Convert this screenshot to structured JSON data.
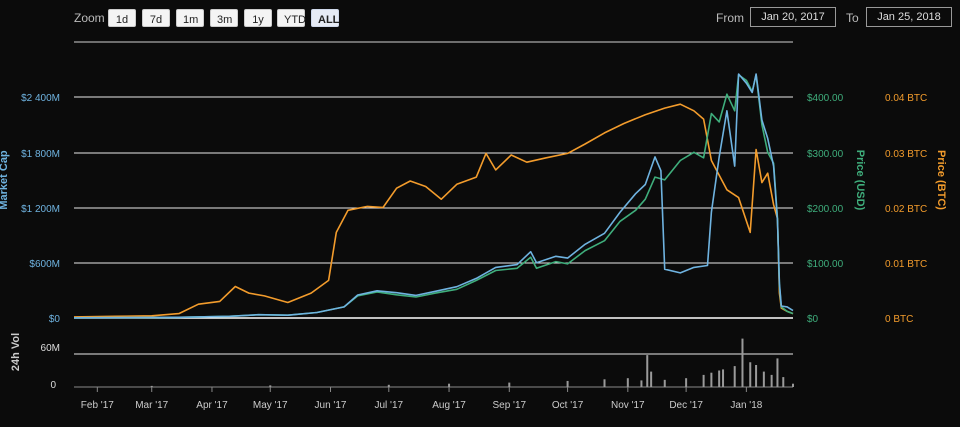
{
  "toolbar": {
    "zoom_label": "Zoom",
    "buttons": [
      "1d",
      "7d",
      "1m",
      "3m",
      "1y",
      "YTD",
      "ALL"
    ],
    "active": "ALL",
    "from_label": "From",
    "from_value": "Jan 20, 2017",
    "to_label": "To",
    "to_value": "Jan 25, 2018"
  },
  "chart_data": {
    "type": "line",
    "x_start": "2017-01-20",
    "x_end": "2018-01-25",
    "x_ticks": [
      "Feb '17",
      "Mar '17",
      "Apr '17",
      "May '17",
      "Jun '17",
      "Jul '17",
      "Aug '17",
      "Sep '17",
      "Oct '17",
      "Nov '17",
      "Dec '17",
      "Jan '18"
    ],
    "axes": {
      "market_cap": {
        "label": "Market Cap",
        "ticks": [
          "$0",
          "$600M",
          "$1 200M",
          "$1 800M",
          "$2 400M"
        ],
        "range": [
          0,
          2400
        ],
        "unit": "M USD",
        "color": "#6fb3e0"
      },
      "price_usd": {
        "label": "Price (USD)",
        "ticks": [
          "$0",
          "$100.00",
          "$200.00",
          "$300.00",
          "$400.00"
        ],
        "range": [
          0,
          400
        ],
        "color": "#3fae7c"
      },
      "price_btc": {
        "label": "Price (BTC)",
        "ticks": [
          "0 BTC",
          "0.01 BTC",
          "0.02 BTC",
          "0.03 BTC",
          "0.04 BTC"
        ],
        "range": [
          0,
          0.04
        ],
        "color": "#f39c2c"
      },
      "volume": {
        "label": "24h Vol",
        "ticks": [
          "0",
          "60M"
        ],
        "range": [
          0,
          60
        ],
        "unit": "M USD"
      }
    },
    "series": [
      {
        "axis": "price_btc",
        "color": "#f39c2c",
        "points": [
          [
            "2017-01-20",
            0.0002
          ],
          [
            "2017-02-10",
            0.0003
          ],
          [
            "2017-03-01",
            0.0004
          ],
          [
            "2017-03-15",
            0.0008
          ],
          [
            "2017-03-25",
            0.0025
          ],
          [
            "2017-04-05",
            0.003
          ],
          [
            "2017-04-13",
            0.0057
          ],
          [
            "2017-04-20",
            0.0045
          ],
          [
            "2017-04-28",
            0.004
          ],
          [
            "2017-05-10",
            0.0028
          ],
          [
            "2017-05-22",
            0.0045
          ],
          [
            "2017-05-31",
            0.0068
          ],
          [
            "2017-06-04",
            0.0155
          ],
          [
            "2017-06-10",
            0.0195
          ],
          [
            "2017-06-20",
            0.0202
          ],
          [
            "2017-06-28",
            0.02
          ],
          [
            "2017-07-05",
            0.0235
          ],
          [
            "2017-07-12",
            0.0248
          ],
          [
            "2017-07-20",
            0.0238
          ],
          [
            "2017-07-28",
            0.0215
          ],
          [
            "2017-08-05",
            0.0242
          ],
          [
            "2017-08-15",
            0.0255
          ],
          [
            "2017-08-20",
            0.0298
          ],
          [
            "2017-08-25",
            0.0268
          ],
          [
            "2017-09-02",
            0.0295
          ],
          [
            "2017-09-10",
            0.0282
          ],
          [
            "2017-09-20",
            0.029
          ],
          [
            "2017-10-01",
            0.0298
          ],
          [
            "2017-10-10",
            0.0315
          ],
          [
            "2017-10-20",
            0.0335
          ],
          [
            "2017-10-30",
            0.0352
          ],
          [
            "2017-11-10",
            0.0368
          ],
          [
            "2017-11-20",
            0.038
          ],
          [
            "2017-11-28",
            0.0387
          ],
          [
            "2017-12-05",
            0.0375
          ],
          [
            "2017-12-10",
            0.036
          ],
          [
            "2017-12-14",
            0.0285
          ],
          [
            "2017-12-22",
            0.0232
          ],
          [
            "2017-12-28",
            0.0218
          ],
          [
            "2018-01-03",
            0.0155
          ],
          [
            "2018-01-06",
            0.0305
          ],
          [
            "2018-01-09",
            0.0245
          ],
          [
            "2018-01-12",
            0.0262
          ],
          [
            "2018-01-15",
            0.0205
          ],
          [
            "2018-01-17",
            0.018
          ],
          [
            "2018-01-18",
            0.0045
          ],
          [
            "2018-01-19",
            0.0018
          ],
          [
            "2018-01-22",
            0.0012
          ],
          [
            "2018-01-25",
            0.0008
          ]
        ]
      },
      {
        "axis": "price_usd",
        "color": "#3fae7c",
        "points": [
          [
            "2017-01-20",
            0.4
          ],
          [
            "2017-02-15",
            0.6
          ],
          [
            "2017-03-15",
            1.2
          ],
          [
            "2017-04-10",
            3
          ],
          [
            "2017-04-25",
            6
          ],
          [
            "2017-05-10",
            5
          ],
          [
            "2017-05-25",
            10
          ],
          [
            "2017-06-08",
            20
          ],
          [
            "2017-06-15",
            40
          ],
          [
            "2017-06-25",
            47
          ],
          [
            "2017-07-05",
            42
          ],
          [
            "2017-07-15",
            38
          ],
          [
            "2017-07-25",
            45
          ],
          [
            "2017-08-05",
            52
          ],
          [
            "2017-08-15",
            68
          ],
          [
            "2017-08-25",
            86
          ],
          [
            "2017-09-05",
            90
          ],
          [
            "2017-09-12",
            110
          ],
          [
            "2017-09-15",
            90
          ],
          [
            "2017-09-25",
            102
          ],
          [
            "2017-10-01",
            98
          ],
          [
            "2017-10-10",
            122
          ],
          [
            "2017-10-20",
            140
          ],
          [
            "2017-10-28",
            175
          ],
          [
            "2017-11-05",
            195
          ],
          [
            "2017-11-10",
            215
          ],
          [
            "2017-11-15",
            255
          ],
          [
            "2017-11-20",
            250
          ],
          [
            "2017-11-28",
            285
          ],
          [
            "2017-12-05",
            300
          ],
          [
            "2017-12-10",
            290
          ],
          [
            "2017-12-14",
            370
          ],
          [
            "2017-12-18",
            355
          ],
          [
            "2017-12-22",
            405
          ],
          [
            "2017-12-26",
            375
          ],
          [
            "2017-12-28",
            440
          ],
          [
            "2018-01-01",
            430
          ],
          [
            "2018-01-04",
            410
          ],
          [
            "2018-01-06",
            440
          ],
          [
            "2018-01-09",
            350
          ],
          [
            "2018-01-12",
            300
          ],
          [
            "2018-01-15",
            280
          ],
          [
            "2018-01-17",
            180
          ],
          [
            "2018-01-18",
            60
          ],
          [
            "2018-01-19",
            20
          ],
          [
            "2018-01-22",
            12
          ],
          [
            "2018-01-25",
            8
          ]
        ]
      },
      {
        "axis": "market_cap",
        "color": "#6fb3e0",
        "points": [
          [
            "2017-01-20",
            2
          ],
          [
            "2017-02-15",
            4
          ],
          [
            "2017-03-15",
            8
          ],
          [
            "2017-04-10",
            18
          ],
          [
            "2017-04-25",
            36
          ],
          [
            "2017-05-10",
            30
          ],
          [
            "2017-05-25",
            60
          ],
          [
            "2017-06-08",
            120
          ],
          [
            "2017-06-15",
            250
          ],
          [
            "2017-06-25",
            295
          ],
          [
            "2017-07-05",
            275
          ],
          [
            "2017-07-15",
            245
          ],
          [
            "2017-07-25",
            290
          ],
          [
            "2017-08-05",
            340
          ],
          [
            "2017-08-15",
            430
          ],
          [
            "2017-08-25",
            550
          ],
          [
            "2017-09-05",
            580
          ],
          [
            "2017-09-12",
            720
          ],
          [
            "2017-09-15",
            600
          ],
          [
            "2017-09-25",
            670
          ],
          [
            "2017-10-01",
            650
          ],
          [
            "2017-10-10",
            800
          ],
          [
            "2017-10-20",
            920
          ],
          [
            "2017-10-28",
            1150
          ],
          [
            "2017-11-05",
            1350
          ],
          [
            "2017-11-10",
            1450
          ],
          [
            "2017-11-15",
            1750
          ],
          [
            "2017-11-18",
            1600
          ],
          [
            "2017-11-20",
            530
          ],
          [
            "2017-11-28",
            490
          ],
          [
            "2017-12-05",
            550
          ],
          [
            "2017-12-12",
            570
          ],
          [
            "2017-12-14",
            1150
          ],
          [
            "2017-12-18",
            1750
          ],
          [
            "2017-12-22",
            2250
          ],
          [
            "2017-12-26",
            1650
          ],
          [
            "2017-12-28",
            2650
          ],
          [
            "2018-01-01",
            2550
          ],
          [
            "2018-01-04",
            2450
          ],
          [
            "2018-01-06",
            2650
          ],
          [
            "2018-01-09",
            2150
          ],
          [
            "2018-01-12",
            1950
          ],
          [
            "2018-01-15",
            1650
          ],
          [
            "2018-01-17",
            1050
          ],
          [
            "2018-01-18",
            380
          ],
          [
            "2018-01-19",
            130
          ],
          [
            "2018-01-22",
            120
          ],
          [
            "2018-01-25",
            80
          ]
        ]
      }
    ],
    "volume": [
      [
        "2017-03-01",
        2
      ],
      [
        "2017-05-01",
        3
      ],
      [
        "2017-07-01",
        4
      ],
      [
        "2017-08-01",
        6
      ],
      [
        "2017-09-01",
        8
      ],
      [
        "2017-10-01",
        11
      ],
      [
        "2017-10-20",
        14
      ],
      [
        "2017-11-01",
        16
      ],
      [
        "2017-11-08",
        12
      ],
      [
        "2017-11-11",
        58
      ],
      [
        "2017-11-13",
        28
      ],
      [
        "2017-11-20",
        13
      ],
      [
        "2017-12-01",
        16
      ],
      [
        "2017-12-10",
        22
      ],
      [
        "2017-12-14",
        26
      ],
      [
        "2017-12-18",
        30
      ],
      [
        "2017-12-20",
        32
      ],
      [
        "2017-12-26",
        38
      ],
      [
        "2017-12-30",
        88
      ],
      [
        "2018-01-03",
        45
      ],
      [
        "2018-01-06",
        40
      ],
      [
        "2018-01-10",
        28
      ],
      [
        "2018-01-14",
        22
      ],
      [
        "2018-01-17",
        52
      ],
      [
        "2018-01-20",
        18
      ],
      [
        "2018-01-25",
        6
      ]
    ],
    "grid": true
  }
}
